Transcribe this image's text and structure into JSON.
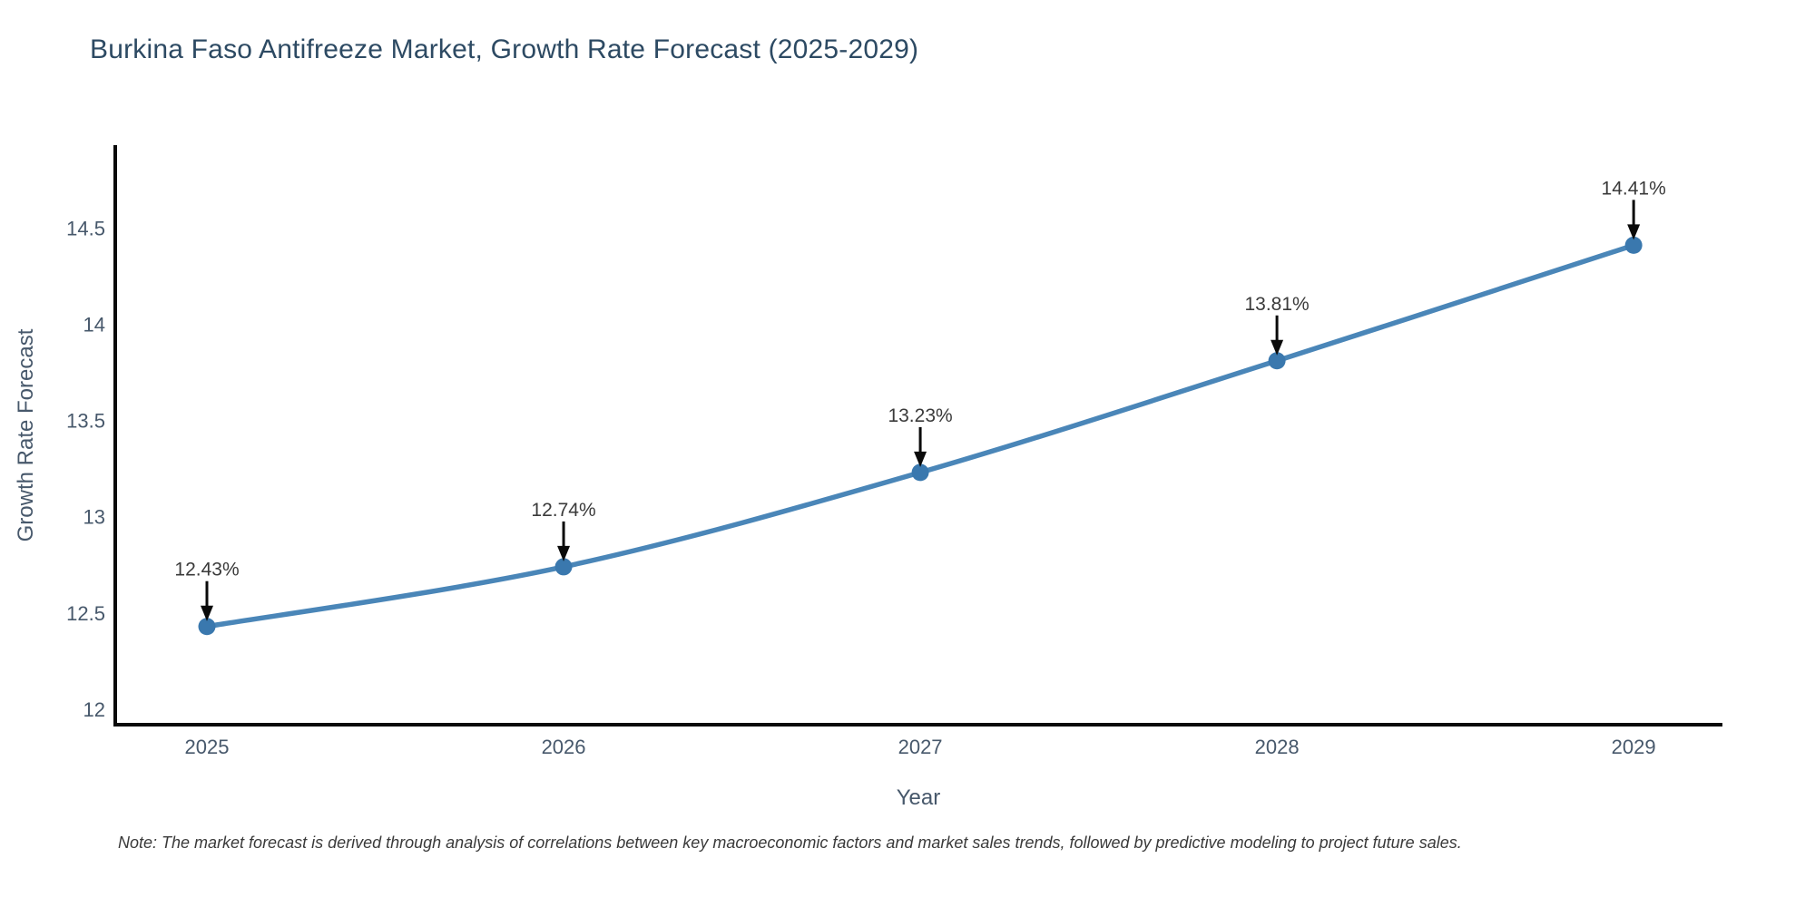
{
  "chart_data": {
    "type": "line",
    "title": "Burkina Faso Antifreeze Market, Growth Rate Forecast (2025-2029)",
    "xlabel": "Year",
    "ylabel": "Growth Rate Forecast",
    "x": [
      2025,
      2026,
      2027,
      2028,
      2029
    ],
    "values": [
      12.43,
      12.74,
      13.23,
      13.81,
      14.41
    ],
    "point_labels": [
      "12.43%",
      "12.74%",
      "13.23%",
      "13.81%",
      "14.41%"
    ],
    "xticks": [
      "2025",
      "2026",
      "2027",
      "2028",
      "2029"
    ],
    "yticks": [
      "12",
      "12.5",
      "13",
      "13.5",
      "14",
      "14.5"
    ],
    "ytick_values": [
      12,
      12.5,
      13,
      13.5,
      14,
      14.5
    ],
    "xlim": [
      2024.743,
      2029.249
    ],
    "ylim": [
      11.92,
      14.93
    ],
    "grid": false,
    "legend": false,
    "line_color": "#4a86b8",
    "marker_color": "#3a78ae",
    "spine_color": "#0a0a0a",
    "annotation_arrow_color": "#0a0a0a",
    "note": "Note: The market forecast is derived through analysis of correlations between key macroeconomic factors and market sales trends, followed by predictive modeling to project future sales."
  }
}
